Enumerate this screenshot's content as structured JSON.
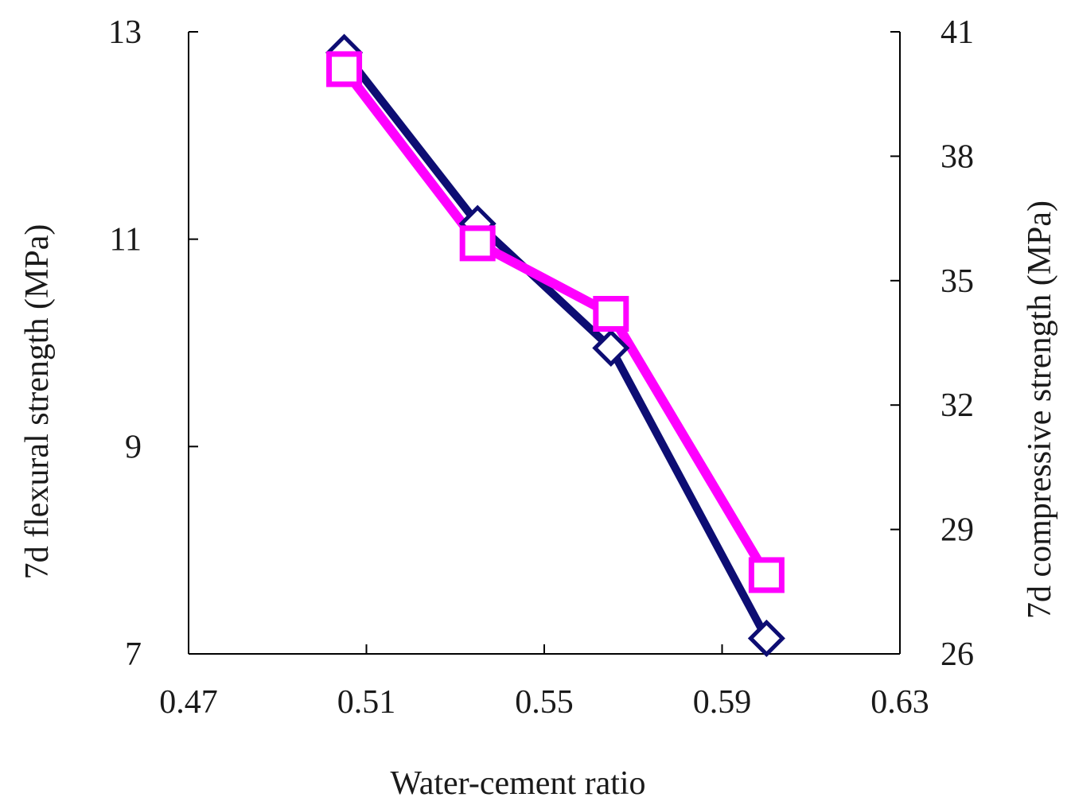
{
  "chart_data": {
    "type": "line",
    "x": [
      0.505,
      0.535,
      0.565,
      0.6
    ],
    "xlim": [
      0.47,
      0.63
    ],
    "xticks": [
      "0.47",
      "0.51",
      "0.55",
      "0.59",
      "0.63"
    ],
    "xlabel": "Water-cement  ratio",
    "left_axis": {
      "label": "7d flexural  strength  (MPa)",
      "ylim": [
        7,
        13
      ],
      "ticks": [
        "7",
        "9",
        "11",
        "13"
      ]
    },
    "right_axis": {
      "label": "7d compressive  strength  (MPa)",
      "ylim": [
        26,
        41
      ],
      "ticks": [
        "26",
        "29",
        "32",
        "35",
        "38",
        "41"
      ]
    },
    "series": [
      {
        "name": "7d flexural strength",
        "axis": "left",
        "marker": "diamond",
        "color": "#0d0d73",
        "values": [
          12.8,
          11.15,
          9.95,
          7.15
        ]
      },
      {
        "name": "7d compressive strength",
        "axis": "right",
        "marker": "square",
        "color": "#ff00ff",
        "values": [
          40.1,
          35.9,
          34.2,
          27.9
        ]
      }
    ],
    "grid": false,
    "title": ""
  }
}
